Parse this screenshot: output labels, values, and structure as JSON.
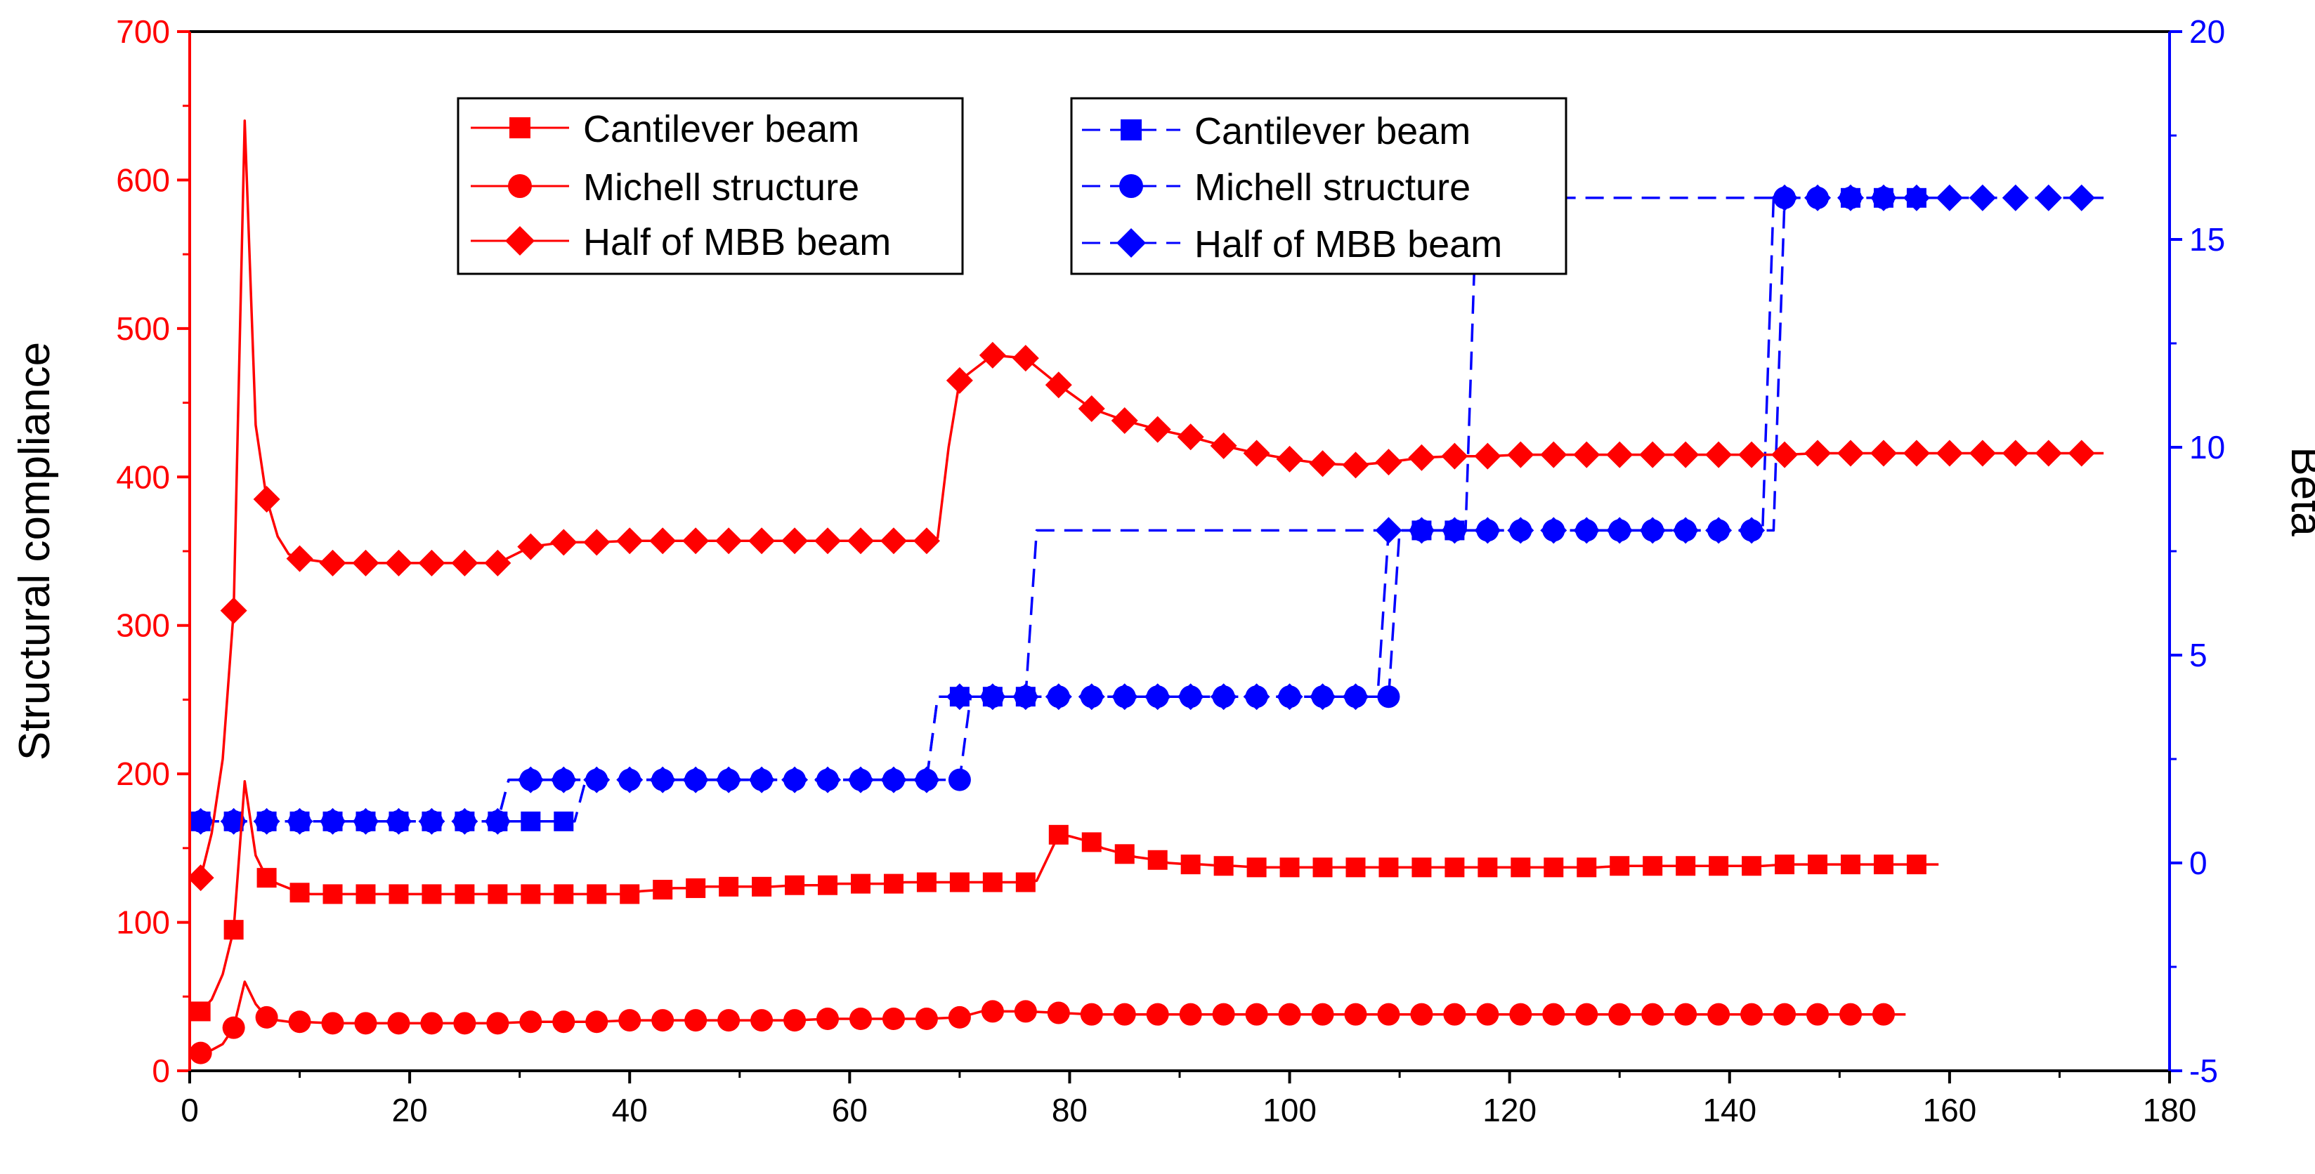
{
  "chart_data": {
    "type": "line",
    "x_axis": {
      "min": 0,
      "max": 180,
      "ticks": [
        0,
        20,
        40,
        60,
        80,
        100,
        120,
        140,
        160,
        180
      ]
    },
    "y_left": {
      "label": "Structural compliance",
      "min": 0,
      "max": 700,
      "ticks": [
        0,
        100,
        200,
        300,
        400,
        500,
        600,
        700
      ],
      "color": "#ff0000"
    },
    "y_right": {
      "label": "Beta",
      "min": -5,
      "max": 20,
      "ticks": [
        -5,
        0,
        5,
        10,
        15,
        20
      ],
      "color": "#0000ff"
    },
    "legend_left": [
      "Cantilever beam",
      "Michell structure",
      "Half of MBB beam"
    ],
    "legend_right": [
      "Cantilever beam",
      "Michell structure",
      "Half of MBB beam"
    ],
    "series": [
      {
        "name": "Cantilever beam",
        "axis": "left",
        "marker": "square",
        "style": "solid",
        "color": "#ff0000",
        "x": [
          1,
          2,
          3,
          4,
          5,
          6,
          7,
          8,
          9,
          10,
          11,
          13,
          14,
          16,
          17,
          19,
          20,
          22,
          23,
          25,
          26,
          28,
          29,
          31,
          32,
          34,
          35,
          37,
          38,
          40,
          41,
          43,
          44,
          46,
          47,
          49,
          50,
          52,
          53,
          55,
          56,
          58,
          59,
          61,
          62,
          64,
          65,
          67,
          68,
          70,
          71,
          73,
          74,
          76,
          77,
          79,
          80,
          82,
          83,
          85,
          86,
          88,
          89,
          91,
          92,
          94,
          95,
          97,
          98,
          100,
          101,
          103,
          104,
          106,
          107,
          109,
          110,
          112,
          113,
          115,
          116,
          118,
          119,
          121,
          122,
          124,
          125,
          127,
          128,
          130,
          131,
          133,
          134,
          136,
          137,
          139,
          140,
          142,
          143,
          145,
          146,
          148,
          149,
          151,
          152,
          154,
          155,
          157,
          158,
          159
        ],
        "y": [
          40,
          48,
          65,
          95,
          195,
          145,
          130,
          126,
          123,
          120,
          119,
          119,
          119,
          119,
          119,
          119,
          119,
          119,
          119,
          119,
          119,
          119,
          119,
          119,
          119,
          119,
          119,
          119,
          119,
          119,
          121,
          122,
          123,
          123,
          124,
          124,
          124,
          124,
          124,
          125,
          125,
          125,
          126,
          126,
          126,
          126,
          127,
          127,
          127,
          127,
          127,
          127,
          127,
          127,
          128,
          159,
          158,
          154,
          150,
          146,
          144,
          142,
          140,
          139,
          139,
          138,
          138,
          137,
          137,
          137,
          137,
          137,
          137,
          137,
          137,
          137,
          137,
          137,
          137,
          137,
          137,
          137,
          137,
          137,
          137,
          137,
          137,
          137,
          137,
          138,
          138,
          138,
          138,
          138,
          138,
          138,
          138,
          138,
          138,
          139,
          139,
          139,
          139,
          139,
          139,
          139,
          139,
          139,
          139,
          139
        ],
        "marker_x": [
          1,
          4,
          7,
          10,
          13,
          16,
          19,
          22,
          25,
          28,
          31,
          34,
          37,
          40,
          43,
          46,
          49,
          52,
          55,
          58,
          61,
          64,
          67,
          70,
          73,
          76,
          79,
          82,
          85,
          88,
          91,
          94,
          97,
          100,
          103,
          106,
          109,
          112,
          115,
          118,
          121,
          124,
          127,
          130,
          133,
          136,
          139,
          142,
          145,
          148,
          151,
          154,
          157
        ]
      },
      {
        "name": "Michell structure",
        "axis": "left",
        "marker": "circle",
        "style": "solid",
        "color": "#ff0000",
        "x": [
          1,
          2,
          3,
          4,
          5,
          6,
          7,
          8,
          9,
          10,
          13,
          16,
          19,
          22,
          25,
          28,
          31,
          34,
          37,
          40,
          43,
          46,
          49,
          52,
          55,
          58,
          61,
          64,
          67,
          70,
          71,
          72,
          73,
          76,
          79,
          82,
          85,
          88,
          91,
          94,
          97,
          100,
          103,
          106,
          109,
          112,
          115,
          118,
          121,
          124,
          127,
          130,
          133,
          136,
          139,
          142,
          145,
          148,
          151,
          154,
          156
        ],
        "y": [
          12,
          14,
          18,
          29,
          60,
          45,
          36,
          34,
          33,
          33,
          32,
          32,
          32,
          32,
          32,
          32,
          33,
          33,
          33,
          34,
          34,
          34,
          34,
          34,
          34,
          35,
          35,
          35,
          35,
          36,
          38,
          40,
          40,
          40,
          39,
          38,
          38,
          38,
          38,
          38,
          38,
          38,
          38,
          38,
          38,
          38,
          38,
          38,
          38,
          38,
          38,
          38,
          38,
          38,
          38,
          38,
          38,
          38,
          38,
          38,
          38
        ],
        "marker_x": [
          1,
          4,
          7,
          10,
          13,
          16,
          19,
          22,
          25,
          28,
          31,
          34,
          37,
          40,
          43,
          46,
          49,
          52,
          55,
          58,
          61,
          64,
          67,
          70,
          73,
          76,
          79,
          82,
          85,
          88,
          91,
          94,
          97,
          100,
          103,
          106,
          109,
          112,
          115,
          118,
          121,
          124,
          127,
          130,
          133,
          136,
          139,
          142,
          145,
          148,
          151,
          154
        ]
      },
      {
        "name": "Half of MBB beam",
        "axis": "left",
        "marker": "diamond",
        "style": "solid",
        "color": "#ff0000",
        "x": [
          1,
          2,
          3,
          4,
          5,
          6,
          7,
          8,
          9,
          10,
          13,
          16,
          19,
          22,
          25,
          28,
          31,
          34,
          37,
          40,
          43,
          46,
          49,
          52,
          55,
          58,
          61,
          64,
          67,
          68,
          69,
          70,
          73,
          76,
          79,
          82,
          85,
          88,
          91,
          94,
          97,
          100,
          103,
          106,
          109,
          112,
          115,
          118,
          121,
          124,
          127,
          130,
          133,
          136,
          139,
          142,
          145,
          148,
          151,
          154,
          157,
          160,
          163,
          166,
          169,
          172,
          174
        ],
        "y": [
          130,
          160,
          210,
          310,
          640,
          435,
          385,
          360,
          348,
          345,
          342,
          342,
          342,
          342,
          342,
          342,
          353,
          356,
          356,
          357,
          357,
          357,
          357,
          357,
          357,
          357,
          357,
          357,
          357,
          359,
          420,
          465,
          482,
          480,
          462,
          446,
          438,
          432,
          427,
          421,
          416,
          412,
          409,
          408,
          410,
          413,
          414,
          414,
          415,
          415,
          415,
          415,
          415,
          415,
          415,
          415,
          415,
          416,
          416,
          416,
          416,
          416,
          416,
          416,
          416,
          416,
          416
        ],
        "marker_x": [
          1,
          4,
          7,
          10,
          13,
          16,
          19,
          22,
          25,
          28,
          31,
          34,
          37,
          40,
          43,
          46,
          49,
          52,
          55,
          58,
          61,
          64,
          67,
          70,
          73,
          76,
          79,
          82,
          85,
          88,
          91,
          94,
          97,
          100,
          103,
          106,
          109,
          112,
          115,
          118,
          121,
          124,
          127,
          130,
          133,
          136,
          139,
          142,
          145,
          148,
          151,
          154,
          157,
          160,
          163,
          166,
          169,
          172
        ]
      },
      {
        "name": "Cantilever beam",
        "axis": "right",
        "marker": "square",
        "style": "dashed",
        "color": "#0000ff",
        "x": [
          1,
          34,
          35,
          35.5,
          36,
          66,
          67,
          67.5,
          68,
          75,
          76,
          76.5,
          77,
          115,
          116,
          116.5,
          117,
          146,
          147,
          147.5,
          148,
          157
        ],
        "y": [
          1,
          1,
          1,
          1.5,
          2,
          2,
          2,
          3,
          4,
          4,
          4,
          6,
          8,
          8,
          8,
          12,
          16,
          16,
          16,
          16,
          16,
          16
        ],
        "marker_x": [
          1,
          4,
          7,
          10,
          13,
          16,
          19,
          22,
          25,
          28,
          31,
          34,
          70,
          73,
          76,
          112,
          115,
          151,
          154,
          157
        ]
      },
      {
        "name": "Michell structure",
        "axis": "right",
        "marker": "circle",
        "style": "dashed",
        "color": "#0000ff",
        "x": [
          1,
          27,
          28,
          28.5,
          29,
          69,
          70,
          70.5,
          71,
          108,
          109,
          109.5,
          110,
          143,
          144,
          144.5,
          145,
          154
        ],
        "y": [
          1,
          1,
          1,
          1.5,
          2,
          2,
          2,
          3,
          4,
          4,
          4,
          6,
          8,
          8,
          8,
          12,
          16,
          16
        ],
        "marker_x": [
          1,
          4,
          7,
          10,
          13,
          16,
          19,
          22,
          25,
          28,
          31,
          34,
          37,
          40,
          43,
          46,
          49,
          52,
          55,
          58,
          61,
          64,
          67,
          70,
          73,
          76,
          79,
          82,
          85,
          88,
          91,
          94,
          97,
          100,
          103,
          106,
          109,
          112,
          115,
          118,
          121,
          124,
          127,
          130,
          133,
          136,
          139,
          142,
          145,
          148,
          151,
          154
        ]
      },
      {
        "name": "Half of MBB beam",
        "axis": "right",
        "marker": "diamond",
        "style": "dashed",
        "color": "#0000ff",
        "x": [
          1,
          27,
          28,
          28.5,
          29,
          66,
          67,
          67.5,
          68,
          107,
          108,
          108.5,
          109,
          142,
          143,
          143.5,
          144,
          174
        ],
        "y": [
          1,
          1,
          1,
          1.5,
          2,
          2,
          2,
          3,
          4,
          4,
          4,
          6,
          8,
          8,
          8,
          12,
          16,
          16
        ],
        "marker_x": [
          1,
          4,
          7,
          10,
          13,
          16,
          19,
          22,
          25,
          28,
          31,
          34,
          37,
          40,
          43,
          46,
          49,
          52,
          55,
          58,
          61,
          64,
          67,
          70,
          73,
          76,
          79,
          82,
          85,
          88,
          91,
          94,
          97,
          100,
          103,
          106,
          109,
          112,
          115,
          118,
          121,
          124,
          127,
          130,
          133,
          136,
          139,
          142,
          145,
          148,
          151,
          154,
          157,
          160,
          163,
          166,
          169,
          172
        ]
      }
    ]
  }
}
